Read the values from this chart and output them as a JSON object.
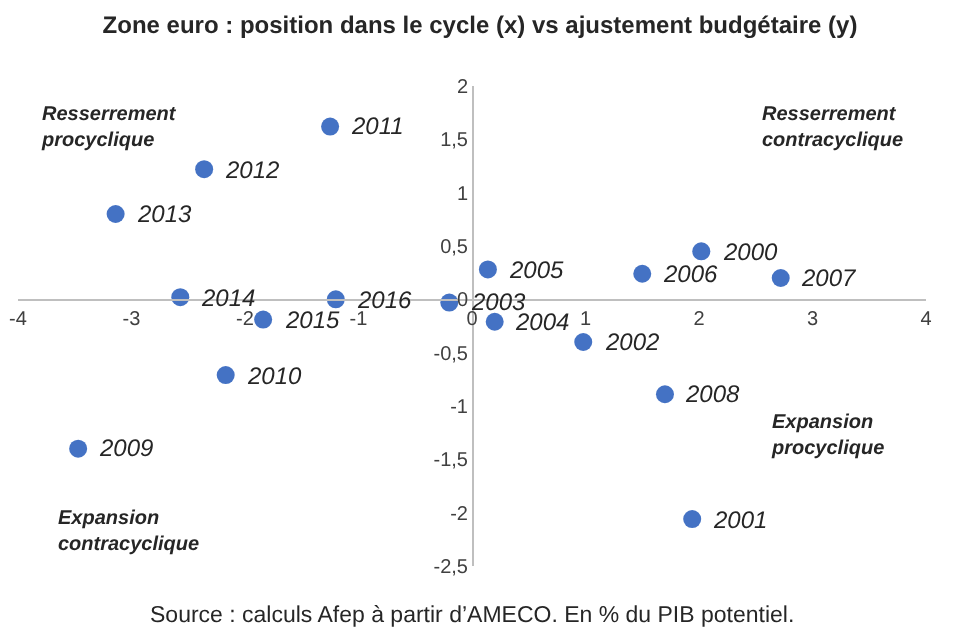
{
  "chart_data": {
    "type": "scatter",
    "title": "Zone euro : position dans le cycle (x) vs ajustement budgétaire (y)",
    "x": [
      2.02,
      1.94,
      0.98,
      -0.2,
      0.2,
      0.14,
      1.5,
      2.72,
      1.7,
      -3.47,
      -2.17,
      -1.25,
      -2.36,
      -3.14,
      -2.57,
      -1.84,
      -1.2
    ],
    "series": [
      {
        "color": "#4472c4",
        "values": [
          0.45,
          -2.06,
          -0.4,
          -0.03,
          -0.21,
          0.28,
          0.24,
          0.2,
          -0.89,
          -1.4,
          -0.71,
          1.62,
          1.22,
          0.8,
          0.02,
          -0.19,
          0.0
        ]
      }
    ],
    "marker": "circle",
    "xlim": [
      -4,
      4
    ],
    "xticks": [
      -4,
      -3,
      -2,
      -1,
      0,
      1,
      2,
      3,
      4
    ],
    "ylim": [
      -2.5,
      2
    ],
    "yticks": [
      {
        "value": -2.5,
        "label": "-2,5"
      },
      -2,
      {
        "value": -1.5,
        "label": "-1,5"
      },
      -1,
      {
        "value": -0.5,
        "label": "-0,5"
      },
      0,
      {
        "value": 0.5,
        "label": "0,5"
      },
      1,
      {
        "value": 1.5,
        "label": "1,5"
      },
      2
    ],
    "annotations": [
      "Resserrement\nprocyclique",
      "Resserrement\ncontracyclique",
      "Expansion\ncontracyclique",
      "Expansion\nprocyclique",
      "Source : calculs Afep à partir d’AMECO. En % du PIB potentiel.",
      {
        "text": "2000",
        "x": 2.02,
        "y": 0.45
      },
      {
        "text": "2001",
        "x": 1.94,
        "y": -2.06
      },
      {
        "text": "2002",
        "x": 0.98,
        "y": -0.4
      },
      {
        "text": "2003",
        "x": -0.2,
        "y": -0.03
      },
      {
        "text": "2004",
        "x": 0.2,
        "y": -0.21
      },
      {
        "text": "2005",
        "x": 0.14,
        "y": 0.28
      },
      {
        "text": "2006",
        "x": 1.5,
        "y": 0.24
      },
      {
        "text": "2007",
        "x": 2.72,
        "y": 0.2
      },
      {
        "text": "2008",
        "x": 1.7,
        "y": -0.89
      },
      {
        "text": "2009",
        "x": -3.47,
        "y": -1.4
      },
      {
        "text": "2010",
        "x": -2.17,
        "y": -0.71
      },
      {
        "text": "2011",
        "x": -1.25,
        "y": 1.62
      },
      {
        "text": "2012",
        "x": -2.36,
        "y": 1.22
      },
      {
        "text": "2013",
        "x": -3.14,
        "y": 0.8
      },
      {
        "text": "2014",
        "x": -2.57,
        "y": 0.02
      },
      {
        "text": "2015",
        "x": -1.84,
        "y": -0.19
      },
      {
        "text": "2016",
        "x": -1.2,
        "y": 0.0
      }
    ]
  }
}
